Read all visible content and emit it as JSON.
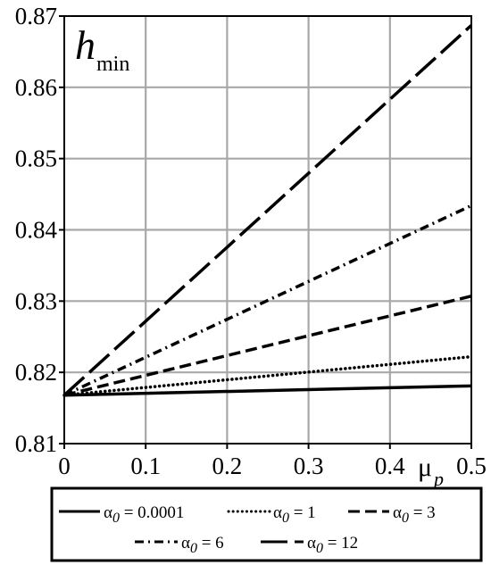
{
  "chart_data": {
    "type": "line",
    "title": "",
    "ylabel": {
      "main": "h",
      "sub": "min"
    },
    "xlabel": {
      "main": "μ",
      "sub": "p"
    },
    "xlim": [
      0,
      0.5
    ],
    "ylim": [
      0.81,
      0.87
    ],
    "x_ticks": [
      "0",
      "0.1",
      "0.2",
      "0.3",
      "0.4",
      "0.5"
    ],
    "y_ticks": [
      "0.81",
      "0.82",
      "0.83",
      "0.84",
      "0.85",
      "0.86",
      "0.87"
    ],
    "grid": true,
    "legend_position": "bottom",
    "series": [
      {
        "name": "0.0001",
        "style": "solid",
        "x": [
          0,
          0.5
        ],
        "y": [
          0.8168,
          0.8181
        ]
      },
      {
        "name": "1",
        "style": "dotted",
        "x": [
          0,
          0.5
        ],
        "y": [
          0.8168,
          0.8222
        ]
      },
      {
        "name": "3",
        "style": "dashed",
        "x": [
          0,
          0.5
        ],
        "y": [
          0.8168,
          0.8307
        ]
      },
      {
        "name": "6",
        "style": "dashdot",
        "x": [
          0,
          0.5
        ],
        "y": [
          0.8168,
          0.8434
        ]
      },
      {
        "name": "12",
        "style": "longdash",
        "x": [
          0,
          0.5
        ],
        "y": [
          0.8168,
          0.8687
        ]
      }
    ],
    "legend_prefix": {
      "main": "α",
      "sub": "0"
    }
  }
}
